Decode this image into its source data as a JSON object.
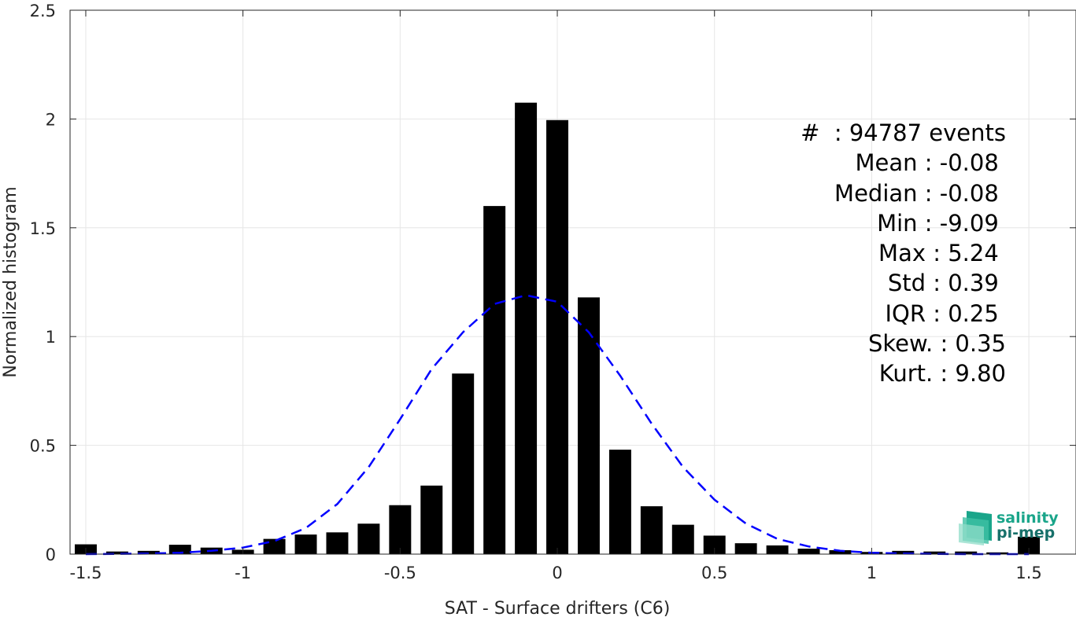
{
  "chart_data": {
    "type": "bar",
    "xlabel": "SAT - Surface drifters (C6)",
    "ylabel": "Normalized histogram",
    "xlim": [
      -1.55,
      1.65
    ],
    "ylim": [
      0,
      2.5
    ],
    "xticks": [
      -1.5,
      -1,
      -0.5,
      0,
      0.5,
      1,
      1.5
    ],
    "xtick_labels": [
      "-1.5",
      "-1",
      "-0.5",
      "0",
      "0.5",
      "1",
      "1.5"
    ],
    "yticks": [
      0,
      0.5,
      1,
      1.5,
      2,
      2.5
    ],
    "ytick_labels": [
      "0",
      "0.5",
      "1",
      "1.5",
      "2",
      "2.5"
    ],
    "grid": true,
    "bar_width": 0.07,
    "bars": {
      "x": [
        -1.5,
        -1.4,
        -1.3,
        -1.2,
        -1.1,
        -1.0,
        -0.9,
        -0.8,
        -0.7,
        -0.6,
        -0.5,
        -0.4,
        -0.3,
        -0.2,
        -0.1,
        0.0,
        0.1,
        0.2,
        0.3,
        0.4,
        0.5,
        0.6,
        0.7,
        0.8,
        0.9,
        1.0,
        1.1,
        1.2,
        1.3,
        1.4,
        1.5
      ],
      "values": [
        0.045,
        0.012,
        0.015,
        0.043,
        0.03,
        0.02,
        0.07,
        0.09,
        0.1,
        0.14,
        0.225,
        0.315,
        0.83,
        1.6,
        2.075,
        1.995,
        1.18,
        0.48,
        0.22,
        0.135,
        0.085,
        0.05,
        0.04,
        0.025,
        0.018,
        0.01,
        0.015,
        0.012,
        0.012,
        0.008,
        0.08
      ],
      "color": "#000000"
    },
    "fit_curve": {
      "style": "dashed",
      "color": "#0000ff",
      "x": [
        -1.5,
        -1.4,
        -1.3,
        -1.2,
        -1.1,
        -1.0,
        -0.9,
        -0.8,
        -0.7,
        -0.6,
        -0.5,
        -0.4,
        -0.3,
        -0.2,
        -0.1,
        0.0,
        0.1,
        0.2,
        0.3,
        0.4,
        0.5,
        0.6,
        0.7,
        0.8,
        0.9,
        1.0,
        1.1,
        1.2,
        1.3,
        1.4,
        1.5
      ],
      "y": [
        0.0,
        0.001,
        0.003,
        0.006,
        0.015,
        0.03,
        0.06,
        0.12,
        0.23,
        0.4,
        0.62,
        0.85,
        1.02,
        1.15,
        1.19,
        1.16,
        1.02,
        0.82,
        0.6,
        0.4,
        0.25,
        0.14,
        0.07,
        0.035,
        0.015,
        0.006,
        0.003,
        0.001,
        0.0,
        0.0,
        0.0
      ]
    }
  },
  "stats": [
    "#  : 94787 events",
    "Mean : -0.08 ",
    "Median : -0.08 ",
    "Min : -9.09 ",
    "Max : 5.24 ",
    "Std : 0.39 ",
    "IQR : 0.25 ",
    "Skew. : 0.35",
    "Kurt. : 9.80"
  ],
  "logo": {
    "line1": "salinity",
    "line2": "pi-mep"
  },
  "colors": {
    "axis": "#262626",
    "grid": "#e6e6e6",
    "logo_light": "#1aa58a",
    "logo_dark": "#17706a"
  }
}
